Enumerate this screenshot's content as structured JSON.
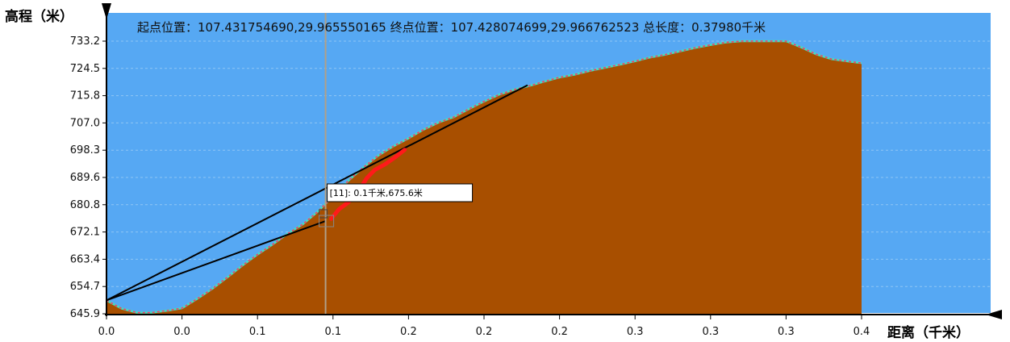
{
  "chart_data": {
    "type": "area",
    "title": "起点位置：107.431754690,29.965550165 终点位置：107.428074699,29.966762523 总长度：0.37980千米",
    "ylabel": "高程（米）",
    "xlabel": "距离（千米）",
    "ylim": [
      645.9,
      733.2
    ],
    "xlim": [
      0,
      0.3798
    ],
    "y_ticks": [
      "645.9",
      "654.7",
      "663.4",
      "672.1",
      "680.8",
      "689.6",
      "698.3",
      "707.0",
      "715.8",
      "724.5",
      "733.2"
    ],
    "x_ticks": [
      "0.0",
      "0.0",
      "0.1",
      "0.1",
      "0.2",
      "0.2",
      "0.2",
      "0.3",
      "0.3",
      "0.3",
      "0.4"
    ],
    "series": [
      {
        "x": [
          0,
          0.0076,
          0.0152,
          0.0228,
          0.0304,
          0.038,
          0.0456,
          0.0532,
          0.0608,
          0.0684,
          0.076,
          0.0836,
          0.0912,
          0.0988,
          0.1064,
          0.114,
          0.1216,
          0.1292,
          0.1368,
          0.1444,
          0.1519,
          0.1595,
          0.1671,
          0.1747,
          0.1823,
          0.1899,
          0.1975,
          0.2051,
          0.2127,
          0.2203,
          0.2279,
          0.2355,
          0.2431,
          0.2507,
          0.2583,
          0.2659,
          0.2735,
          0.2811,
          0.2887,
          0.2963,
          0.3039,
          0.3115,
          0.3191,
          0.3267,
          0.3343,
          0.3419,
          0.3495,
          0.3571,
          0.3646,
          0.3722,
          0.3798
        ],
        "y": [
          650.2,
          647.6,
          646.3,
          646.3,
          646.9,
          647.7,
          650.7,
          653.9,
          657.6,
          661.4,
          664.9,
          668.1,
          671.6,
          674.6,
          678.7,
          683.6,
          688.5,
          692.8,
          696.6,
          699.6,
          702.1,
          704.9,
          707.2,
          708.9,
          711.5,
          713.9,
          716.1,
          717.7,
          718.9,
          720.3,
          721.6,
          722.5,
          723.7,
          724.7,
          725.7,
          726.8,
          728.0,
          728.9,
          730.0,
          731.1,
          732.0,
          732.8,
          733.2,
          733.2,
          733.2,
          733.2,
          731.2,
          729.0,
          727.5,
          726.8,
          726.2
        ]
      }
    ],
    "cursor": {
      "x": 0.1102,
      "label": "[11]:  0.1千米,675.6米"
    },
    "colors": {
      "background": "#56a8f3",
      "fill": "#a84f00",
      "outline_a": "#40e0c0",
      "outline_b": "#ff3366",
      "highlight": "#ff1a1a",
      "tangent": "#000000",
      "cursor": "#b0a088",
      "grid": "#8fc6f4"
    }
  }
}
